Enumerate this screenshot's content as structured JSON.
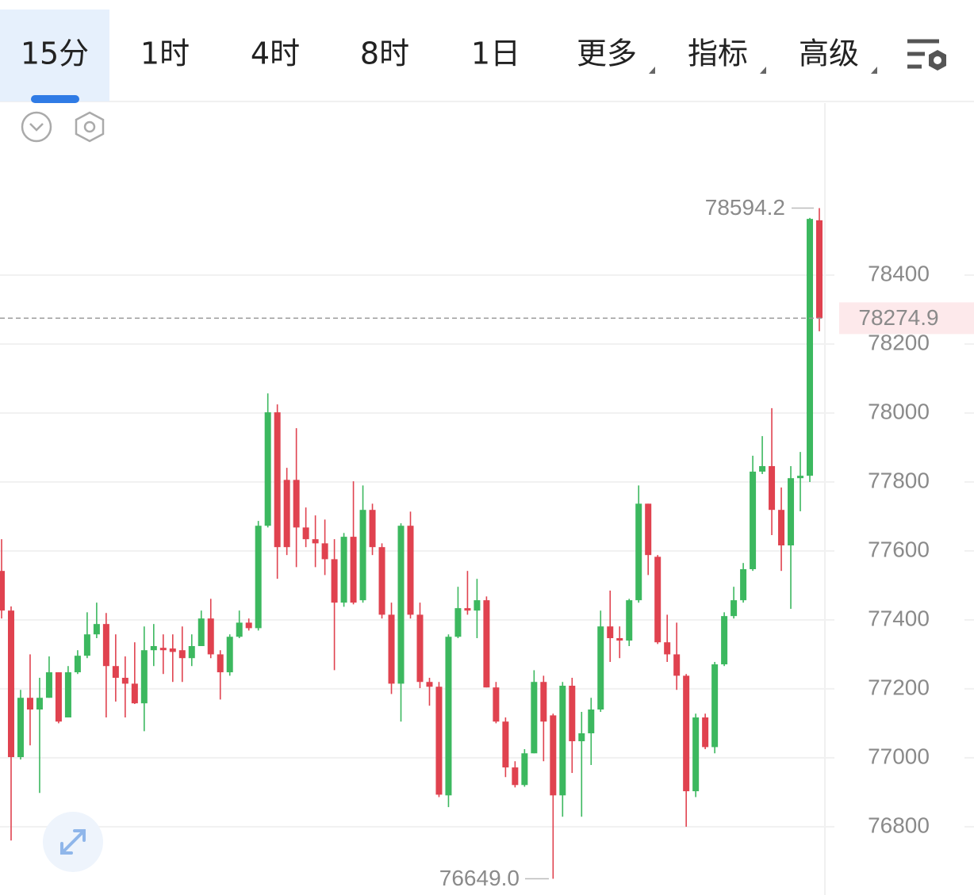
{
  "toolbar": {
    "tabs": [
      "15分",
      "1时",
      "4时",
      "8时",
      "1日",
      "更多",
      "指标",
      "高级"
    ],
    "active": 0
  },
  "chart_data": {
    "type": "candlestick",
    "up_color": "#3cb85f",
    "down_color": "#e0424f",
    "ylim": [
      76602,
      78899
    ],
    "yticks": [
      76800,
      77000,
      77200,
      77400,
      77600,
      77800,
      78000,
      78200,
      78400
    ],
    "grid": true,
    "open": [
      77542,
      77427,
      77002,
      77174,
      77140,
      77174,
      77248,
      77117,
      77248,
      77296,
      77358,
      77388,
      77266,
      77232,
      77215,
      77158,
      77312,
      77319,
      77317,
      77312,
      77289,
      77324,
      77404,
      77300,
      77248,
      77351,
      77392,
      77376,
      77673,
      78002,
      77806,
      77806,
      77668,
      77634,
      77622,
      77576,
      77450,
      77641,
      77457,
      77719,
      77611,
      77415,
      77215,
      77673,
      77415,
      77220,
      77206,
      76891,
      77351,
      77434,
      77427,
      77457,
      77204,
      77105,
      76972,
      76921,
      77013,
      77220,
      77123,
      76891,
      77209,
      77048,
      77071,
      77140,
      77381,
      77347,
      77340,
      77457,
      77737,
      77583,
      77335,
      77300,
      77238,
      76903,
      77117,
      77031,
      77271,
      77411,
      77457,
      77547,
      77830,
      77846,
      77719,
      77616,
      77811,
      77818,
      78559
    ],
    "high": [
      77634,
      77439,
      77197,
      77300,
      77232,
      77294,
      77248,
      77266,
      77312,
      77422,
      77450,
      77420,
      77358,
      77294,
      77335,
      77381,
      77388,
      77358,
      77358,
      77381,
      77358,
      77427,
      77461,
      77312,
      77358,
      77427,
      77404,
      77687,
      78057,
      78025,
      77841,
      77956,
      77726,
      77703,
      77691,
      77634,
      77652,
      77802,
      77790,
      77737,
      77622,
      77450,
      77680,
      77714,
      77450,
      77232,
      77220,
      77358,
      77496,
      77542,
      77519,
      77468,
      77220,
      77117,
      76990,
      77025,
      77254,
      77238,
      77128,
      77220,
      77232,
      77133,
      77174,
      77427,
      77485,
      77381,
      77461,
      77790,
      77737,
      77588,
      77415,
      77392,
      77243,
      77128,
      77128,
      77278,
      77422,
      77496,
      77565,
      77876,
      77933,
      78014,
      77784,
      77846,
      77887,
      78566,
      78594.2
    ],
    "low": [
      77404,
      76760,
      76995,
      77036,
      76898,
      77174,
      77100,
      77117,
      77243,
      77289,
      77347,
      77117,
      77163,
      77117,
      77156,
      77077,
      77266,
      77243,
      77220,
      77220,
      77266,
      77324,
      77289,
      77169,
      77238,
      77347,
      77369,
      77369,
      77668,
      77519,
      77588,
      77553,
      77611,
      77553,
      77530,
      77254,
      77438,
      77445,
      77450,
      77588,
      77404,
      77185,
      77105,
      77404,
      77202,
      77151,
      76886,
      76857,
      77347,
      77415,
      77347,
      77204,
      77100,
      76944,
      76914,
      76916,
      77013,
      76990,
      76649,
      76829,
      76956,
      76829,
      76979,
      77133,
      77278,
      77289,
      77324,
      77450,
      77530,
      77330,
      77278,
      77197,
      76800,
      76886,
      77025,
      77013,
      77266,
      77404,
      77450,
      77542,
      77823,
      77646,
      77542,
      77432,
      77715,
      77800,
      78237
    ],
    "close": [
      77427,
      77002,
      77174,
      77140,
      77174,
      77248,
      77105,
      77248,
      77296,
      77358,
      77388,
      77266,
      77232,
      77215,
      77158,
      77312,
      77324,
      77312,
      77307,
      77289,
      77324,
      77404,
      77300,
      77248,
      77351,
      77392,
      77376,
      77673,
      78002,
      77611,
      77611,
      77668,
      77634,
      77622,
      77576,
      77450,
      77641,
      77450,
      77719,
      77611,
      77415,
      77215,
      77673,
      77415,
      77220,
      77206,
      76893,
      77351,
      77434,
      77427,
      77457,
      77204,
      77105,
      76972,
      76921,
      77013,
      77220,
      77105,
      76891,
      77209,
      77048,
      77071,
      77140,
      77381,
      77347,
      77340,
      77457,
      77737,
      77588,
      77335,
      77300,
      77238,
      76903,
      77117,
      77031,
      77271,
      77411,
      77457,
      77547,
      77830,
      77846,
      77719,
      77616,
      77811,
      77818,
      78563,
      78274.9
    ],
    "max_marker": {
      "value": 78594.2,
      "label": "78594.2"
    },
    "min_marker": {
      "value": 76649,
      "label": "76649.0"
    },
    "last_price": {
      "value": 78274.9,
      "label": "78274.9"
    }
  }
}
